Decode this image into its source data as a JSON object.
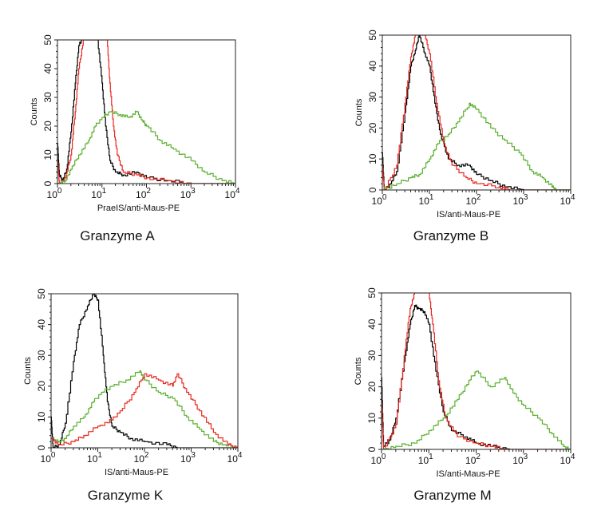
{
  "colors": {
    "black": "#000000",
    "red": "#e8281f",
    "green": "#5cb030"
  },
  "chart_data": [
    {
      "type": "line",
      "title": "Granzyme A",
      "xlabel": "PraeIS/anti-Maus-PE",
      "ylabel": "Counts",
      "xscale": "log",
      "xlim": [
        1,
        10000
      ],
      "ylim": [
        0,
        50
      ],
      "xticks": [
        "0",
        "1",
        "2",
        "3",
        "4"
      ],
      "yticks": [
        "0",
        "10",
        "20",
        "30",
        "40",
        "50"
      ],
      "grid": false,
      "series": [
        {
          "color": "black",
          "points": [
            [
              1,
              14
            ],
            [
              1.1,
              3
            ],
            [
              1.3,
              1
            ],
            [
              1.6,
              5
            ],
            [
              2,
              18
            ],
            [
              2.5,
              35
            ],
            [
              3,
              48
            ],
            [
              3.5,
              50
            ],
            [
              8,
              50
            ],
            [
              10,
              35
            ],
            [
              12,
              20
            ],
            [
              15,
              8
            ],
            [
              20,
              4
            ],
            [
              30,
              3
            ],
            [
              60,
              4
            ],
            [
              100,
              2
            ],
            [
              300,
              1
            ],
            [
              1000,
              0
            ],
            [
              10000,
              0
            ]
          ]
        },
        {
          "color": "red",
          "points": [
            [
              1,
              8
            ],
            [
              1.1,
              0
            ],
            [
              1.5,
              2
            ],
            [
              2,
              10
            ],
            [
              2.5,
              25
            ],
            [
              3,
              40
            ],
            [
              3.8,
              50
            ],
            [
              13,
              50
            ],
            [
              15,
              35
            ],
            [
              18,
              20
            ],
            [
              22,
              10
            ],
            [
              30,
              4
            ],
            [
              60,
              3
            ],
            [
              100,
              2
            ],
            [
              300,
              1
            ],
            [
              1000,
              0
            ],
            [
              10000,
              0
            ]
          ]
        },
        {
          "color": "green",
          "points": [
            [
              1,
              0
            ],
            [
              1.5,
              1
            ],
            [
              2,
              5
            ],
            [
              3,
              10
            ],
            [
              5,
              15
            ],
            [
              7,
              20
            ],
            [
              10,
              23
            ],
            [
              15,
              25
            ],
            [
              25,
              24
            ],
            [
              40,
              23
            ],
            [
              60,
              25
            ],
            [
              80,
              22
            ],
            [
              100,
              20
            ],
            [
              200,
              15
            ],
            [
              400,
              12
            ],
            [
              1000,
              8
            ],
            [
              2000,
              4
            ],
            [
              5000,
              1
            ],
            [
              10000,
              0
            ]
          ]
        }
      ]
    },
    {
      "type": "line",
      "title": "Granzyme B",
      "xlabel": "IS/anti-Maus-PE",
      "ylabel": "Counts",
      "xscale": "log",
      "xlim": [
        1,
        10000
      ],
      "ylim": [
        0,
        50
      ],
      "xticks": [
        "0",
        "1",
        "2",
        "3",
        "4"
      ],
      "yticks": [
        "0",
        "10",
        "20",
        "30",
        "40",
        "50"
      ],
      "grid": false,
      "series": [
        {
          "color": "black",
          "points": [
            [
              1,
              12
            ],
            [
              1.1,
              0
            ],
            [
              1.5,
              2
            ],
            [
              2,
              6
            ],
            [
              3,
              25
            ],
            [
              4,
              40
            ],
            [
              5,
              45
            ],
            [
              6,
              50
            ],
            [
              8,
              44
            ],
            [
              10,
              40
            ],
            [
              13,
              28
            ],
            [
              17,
              18
            ],
            [
              25,
              10
            ],
            [
              40,
              8
            ],
            [
              70,
              8
            ],
            [
              100,
              5
            ],
            [
              200,
              3
            ],
            [
              400,
              1
            ],
            [
              1000,
              0
            ],
            [
              10000,
              0
            ]
          ]
        },
        {
          "color": "red",
          "points": [
            [
              1,
              8
            ],
            [
              1.1,
              0
            ],
            [
              2,
              8
            ],
            [
              3,
              28
            ],
            [
              4,
              43
            ],
            [
              5,
              50
            ],
            [
              8,
              50
            ],
            [
              10,
              44
            ],
            [
              14,
              28
            ],
            [
              20,
              15
            ],
            [
              30,
              8
            ],
            [
              60,
              4
            ],
            [
              100,
              2
            ],
            [
              300,
              1
            ],
            [
              500,
              0
            ],
            [
              10000,
              0
            ]
          ]
        },
        {
          "color": "green",
          "points": [
            [
              1,
              0
            ],
            [
              2,
              2
            ],
            [
              4,
              4
            ],
            [
              6,
              5
            ],
            [
              10,
              10
            ],
            [
              15,
              15
            ],
            [
              25,
              18
            ],
            [
              40,
              22
            ],
            [
              70,
              28
            ],
            [
              100,
              26
            ],
            [
              200,
              20
            ],
            [
              400,
              16
            ],
            [
              800,
              12
            ],
            [
              1500,
              6
            ],
            [
              2500,
              4
            ],
            [
              4000,
              1
            ],
            [
              5000,
              0
            ],
            [
              10000,
              0
            ]
          ]
        }
      ]
    },
    {
      "type": "line",
      "title": "Granzyme K",
      "xlabel": "IS/anti-Maus-PE",
      "ylabel": "Counts",
      "xscale": "log",
      "xlim": [
        1,
        10000
      ],
      "ylim": [
        0,
        50
      ],
      "xticks": [
        "0",
        "1",
        "2",
        "3",
        "4"
      ],
      "yticks": [
        "0",
        "10",
        "20",
        "30",
        "40",
        "50"
      ],
      "grid": false,
      "series": [
        {
          "color": "black",
          "points": [
            [
              1,
              10
            ],
            [
              1.1,
              0
            ],
            [
              1.5,
              1
            ],
            [
              2,
              8
            ],
            [
              3,
              28
            ],
            [
              4,
              40
            ],
            [
              6,
              46
            ],
            [
              8,
              50
            ],
            [
              10,
              48
            ],
            [
              13,
              30
            ],
            [
              16,
              15
            ],
            [
              20,
              7
            ],
            [
              30,
              5
            ],
            [
              50,
              3
            ],
            [
              100,
              2
            ],
            [
              300,
              1
            ],
            [
              500,
              0
            ],
            [
              10000,
              0
            ]
          ]
        },
        {
          "color": "green",
          "points": [
            [
              1,
              3
            ],
            [
              1.5,
              2
            ],
            [
              2,
              3
            ],
            [
              3,
              7
            ],
            [
              5,
              10
            ],
            [
              8,
              15
            ],
            [
              12,
              18
            ],
            [
              20,
              20
            ],
            [
              40,
              22
            ],
            [
              80,
              25
            ],
            [
              100,
              22
            ],
            [
              200,
              18
            ],
            [
              400,
              16
            ],
            [
              800,
              10
            ],
            [
              1500,
              6
            ],
            [
              3000,
              2
            ],
            [
              5000,
              1
            ],
            [
              10000,
              0
            ]
          ]
        },
        {
          "color": "red",
          "points": [
            [
              1,
              3
            ],
            [
              1.5,
              1
            ],
            [
              3,
              2
            ],
            [
              5,
              4
            ],
            [
              10,
              7
            ],
            [
              20,
              9
            ],
            [
              30,
              12
            ],
            [
              60,
              18
            ],
            [
              100,
              24
            ],
            [
              200,
              22
            ],
            [
              400,
              20
            ],
            [
              500,
              24
            ],
            [
              800,
              18
            ],
            [
              1500,
              12
            ],
            [
              3000,
              5
            ],
            [
              6000,
              1
            ],
            [
              10000,
              0
            ]
          ]
        }
      ]
    },
    {
      "type": "line",
      "title": "Granzyme M",
      "xlabel": "IS/anti-Maus-PE",
      "ylabel": "Counts",
      "xscale": "log",
      "xlim": [
        1,
        10000
      ],
      "ylim": [
        0,
        50
      ],
      "xticks": [
        "0",
        "1",
        "2",
        "3",
        "4"
      ],
      "yticks": [
        "0",
        "10",
        "20",
        "30",
        "40",
        "50"
      ],
      "grid": false,
      "series": [
        {
          "color": "black",
          "points": [
            [
              1,
              23
            ],
            [
              1.1,
              1
            ],
            [
              1.5,
              3
            ],
            [
              2,
              10
            ],
            [
              3,
              28
            ],
            [
              4,
              40
            ],
            [
              5,
              46
            ],
            [
              6,
              45
            ],
            [
              8,
              44
            ],
            [
              10,
              40
            ],
            [
              14,
              25
            ],
            [
              20,
              12
            ],
            [
              30,
              6
            ],
            [
              60,
              4
            ],
            [
              100,
              2
            ],
            [
              200,
              1
            ],
            [
              500,
              0
            ],
            [
              10000,
              0
            ]
          ]
        },
        {
          "color": "red",
          "points": [
            [
              1,
              15
            ],
            [
              1.1,
              0
            ],
            [
              2,
              8
            ],
            [
              3,
              30
            ],
            [
              4,
              45
            ],
            [
              5,
              50
            ],
            [
              10,
              50
            ],
            [
              12,
              40
            ],
            [
              16,
              22
            ],
            [
              22,
              10
            ],
            [
              40,
              4
            ],
            [
              100,
              2
            ],
            [
              200,
              1
            ],
            [
              400,
              0
            ],
            [
              10000,
              0
            ]
          ]
        },
        {
          "color": "green",
          "points": [
            [
              1,
              0
            ],
            [
              2,
              1
            ],
            [
              5,
              2
            ],
            [
              10,
              6
            ],
            [
              20,
              10
            ],
            [
              40,
              16
            ],
            [
              70,
              22
            ],
            [
              100,
              25
            ],
            [
              200,
              20
            ],
            [
              400,
              23
            ],
            [
              600,
              18
            ],
            [
              1000,
              14
            ],
            [
              2000,
              10
            ],
            [
              4000,
              5
            ],
            [
              7000,
              1
            ],
            [
              10000,
              0
            ]
          ]
        }
      ]
    }
  ]
}
